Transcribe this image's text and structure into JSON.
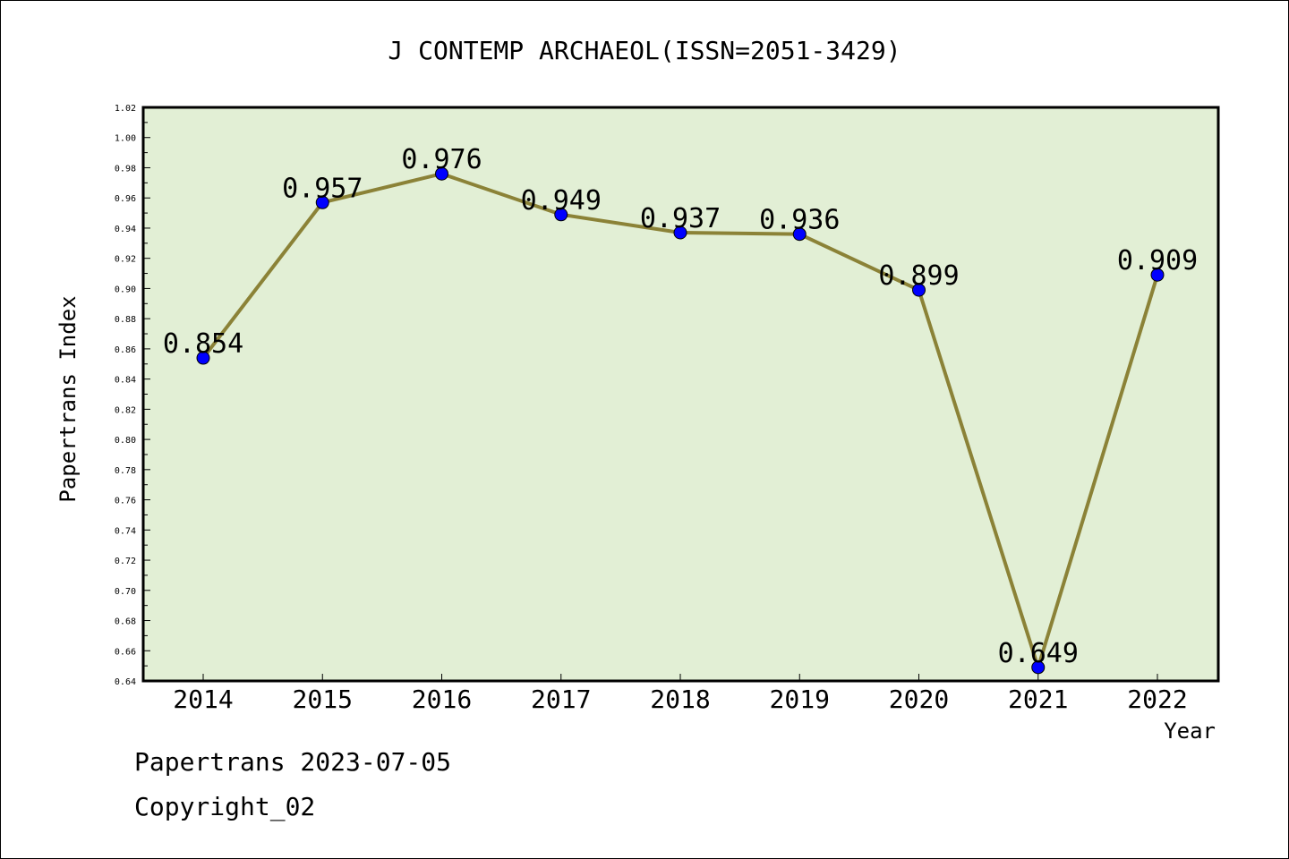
{
  "chart_data": {
    "type": "line",
    "title": "J CONTEMP ARCHAEOL(ISSN=2051-3429)",
    "xlabel": "Year",
    "ylabel": "Papertrans Index",
    "categories": [
      "2014",
      "2015",
      "2016",
      "2017",
      "2018",
      "2019",
      "2020",
      "2021",
      "2022"
    ],
    "series": [
      {
        "values": [
          0.854,
          0.957,
          0.976,
          0.949,
          0.937,
          0.936,
          0.899,
          0.649,
          0.909
        ],
        "data_labels": [
          "0.854",
          "0.957",
          "0.976",
          "0.949",
          "0.937",
          "0.936",
          "0.899",
          "0.649",
          "0.909"
        ]
      }
    ],
    "ylim": [
      0.64,
      1.02
    ],
    "yticks": [
      "0.64",
      "0.66",
      "0.68",
      "0.70",
      "0.72",
      "0.74",
      "0.76",
      "0.78",
      "0.80",
      "0.82",
      "0.84",
      "0.86",
      "0.88",
      "0.90",
      "0.92",
      "0.94",
      "0.96",
      "0.98",
      "1.00",
      "1.02"
    ],
    "grid": false,
    "colors": {
      "plot_background": "#e2efd5",
      "line": "#8b8237",
      "marker": "#0000ff"
    }
  },
  "footer": {
    "date_line": "Papertrans 2023-07-05",
    "copyright": "Copyright_02"
  }
}
